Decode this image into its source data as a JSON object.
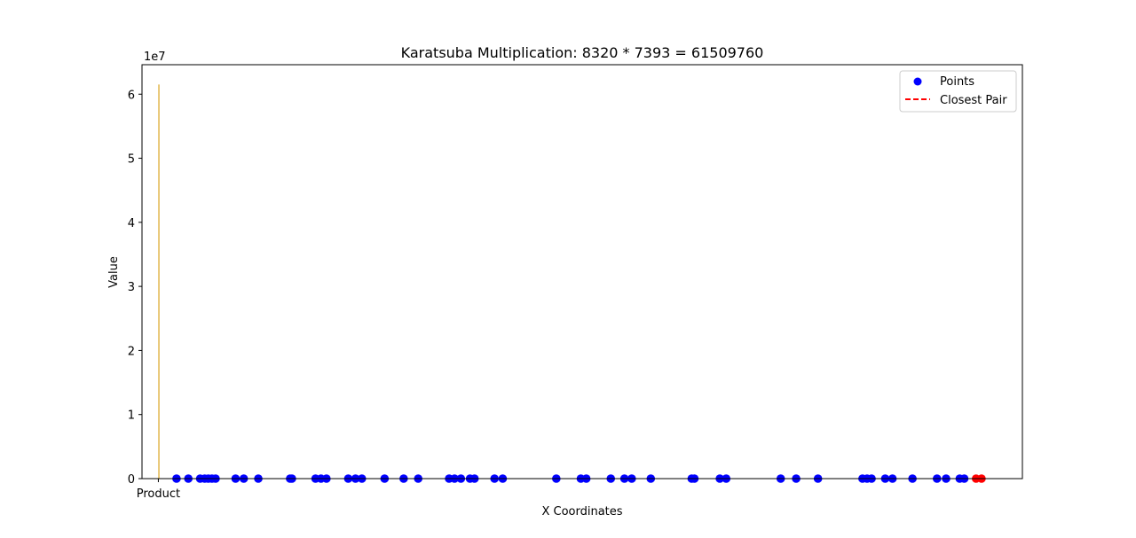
{
  "chart_data": {
    "type": "scatter",
    "title": "Karatsuba Multiplication: 8320 * 7393 = 61509760",
    "xlabel": "X Coordinates",
    "ylabel": "Value",
    "y_offset_text": "1e7",
    "ylim": [
      0,
      64600000
    ],
    "y_ticks": [
      {
        "value": 0,
        "label": "0"
      },
      {
        "value": 10000000,
        "label": "1"
      },
      {
        "value": 20000000,
        "label": "2"
      },
      {
        "value": 30000000,
        "label": "3"
      },
      {
        "value": 40000000,
        "label": "4"
      },
      {
        "value": 50000000,
        "label": "5"
      },
      {
        "value": 60000000,
        "label": "6"
      }
    ],
    "x_tick_labels": [
      "Product"
    ],
    "bar": {
      "category": "Product",
      "value": 61509760,
      "color": "#DAA520"
    },
    "grid": false,
    "legend_position": "top-right",
    "legend": [
      {
        "label": "Points",
        "marker": "dot",
        "color": "#0000FF"
      },
      {
        "label": "Closest Pair",
        "marker": "dashed-line",
        "color": "#FF0000"
      }
    ],
    "points": [
      {
        "x": 20,
        "y": 0
      },
      {
        "x": 33,
        "y": 0
      },
      {
        "x": 46,
        "y": 0
      },
      {
        "x": 51,
        "y": 0
      },
      {
        "x": 55,
        "y": 0
      },
      {
        "x": 59,
        "y": 0
      },
      {
        "x": 63,
        "y": 0
      },
      {
        "x": 85,
        "y": 0
      },
      {
        "x": 94,
        "y": 0
      },
      {
        "x": 110,
        "y": 0
      },
      {
        "x": 145,
        "y": 0
      },
      {
        "x": 147,
        "y": 0
      },
      {
        "x": 173,
        "y": 0
      },
      {
        "x": 179,
        "y": 0
      },
      {
        "x": 185,
        "y": 0
      },
      {
        "x": 209,
        "y": 0
      },
      {
        "x": 217,
        "y": 0
      },
      {
        "x": 224,
        "y": 0
      },
      {
        "x": 249,
        "y": 0
      },
      {
        "x": 270,
        "y": 0
      },
      {
        "x": 286,
        "y": 0
      },
      {
        "x": 320,
        "y": 0
      },
      {
        "x": 326,
        "y": 0
      },
      {
        "x": 333,
        "y": 0
      },
      {
        "x": 343,
        "y": 0
      },
      {
        "x": 348,
        "y": 0
      },
      {
        "x": 370,
        "y": 0
      },
      {
        "x": 379,
        "y": 0
      },
      {
        "x": 438,
        "y": 0
      },
      {
        "x": 465,
        "y": 0
      },
      {
        "x": 471,
        "y": 0
      },
      {
        "x": 498,
        "y": 0
      },
      {
        "x": 513,
        "y": 0
      },
      {
        "x": 521,
        "y": 0
      },
      {
        "x": 542,
        "y": 0
      },
      {
        "x": 587,
        "y": 0
      },
      {
        "x": 590,
        "y": 0
      },
      {
        "x": 618,
        "y": 0
      },
      {
        "x": 625,
        "y": 0
      },
      {
        "x": 685,
        "y": 0
      },
      {
        "x": 702,
        "y": 0
      },
      {
        "x": 726,
        "y": 0
      },
      {
        "x": 775,
        "y": 0
      },
      {
        "x": 780,
        "y": 0
      },
      {
        "x": 785,
        "y": 0
      },
      {
        "x": 800,
        "y": 0
      },
      {
        "x": 808,
        "y": 0
      },
      {
        "x": 830,
        "y": 0
      },
      {
        "x": 857,
        "y": 0
      },
      {
        "x": 867,
        "y": 0
      },
      {
        "x": 882,
        "y": 0
      },
      {
        "x": 887,
        "y": 0
      }
    ],
    "closest_pair": [
      {
        "x": 900,
        "y": 0
      },
      {
        "x": 906,
        "y": 0
      }
    ],
    "xlim": [
      -18,
      951
    ]
  }
}
